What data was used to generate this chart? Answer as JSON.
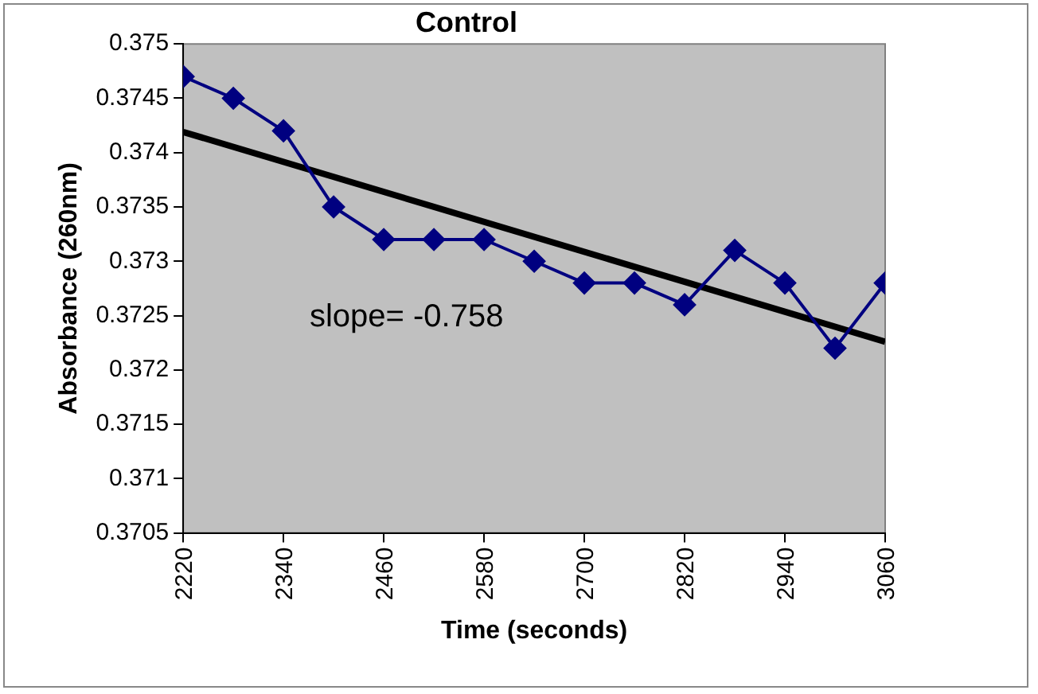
{
  "chart_data": {
    "type": "line",
    "title": "Control",
    "xlabel": "Time (seconds)",
    "ylabel": "Absorbance (260nm)",
    "x": [
      2220,
      2280,
      2340,
      2400,
      2460,
      2520,
      2580,
      2640,
      2700,
      2760,
      2820,
      2880,
      2940,
      3000,
      3060
    ],
    "series": [
      {
        "color": "#000080",
        "values": [
          0.3747,
          0.3745,
          0.3742,
          0.3735,
          0.3732,
          0.3732,
          0.3732,
          0.373,
          0.3728,
          0.3728,
          0.3726,
          0.3731,
          0.3728,
          0.3722,
          0.3728
        ],
        "marker": "diamond"
      },
      {
        "type": "line",
        "color": "#000000",
        "x": [
          2220,
          3060
        ],
        "values": [
          0.37419,
          0.37226
        ],
        "marker": "none"
      }
    ],
    "xlim": [
      2220,
      3060
    ],
    "xticks": [
      2220,
      2340,
      2460,
      2580,
      2700,
      2820,
      2940,
      3060
    ],
    "ylim": [
      0.3705,
      0.375
    ],
    "yticks": [
      0.3705,
      0.371,
      0.3715,
      0.372,
      0.3725,
      0.373,
      0.3735,
      0.374,
      0.3745,
      0.375
    ],
    "annotations": [
      "slope= -0.758"
    ],
    "grid": false,
    "legend": false
  }
}
